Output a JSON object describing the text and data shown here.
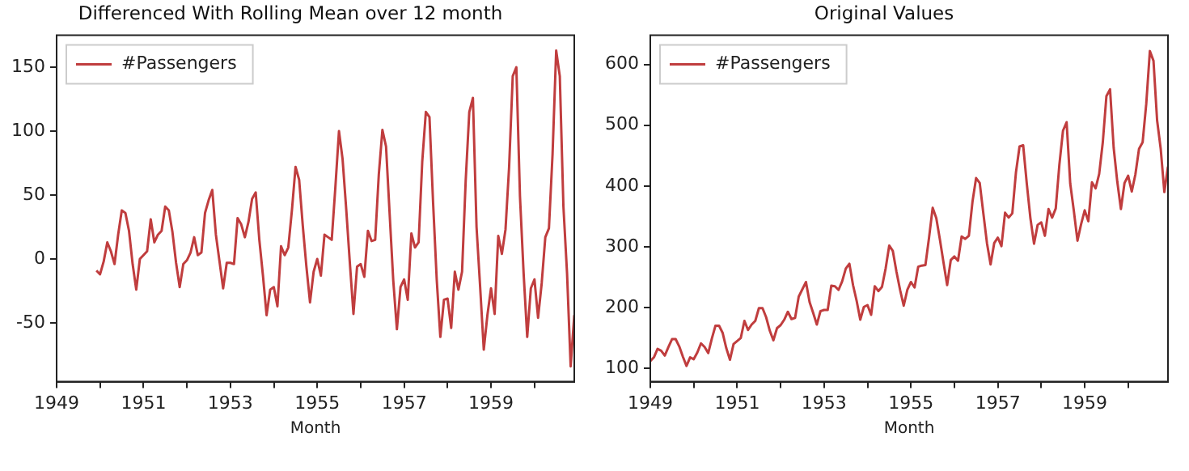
{
  "chart_data": [
    {
      "type": "line",
      "title": "Differenced With Rolling Mean over 12 month",
      "xlabel": "Month",
      "legend": "top left",
      "grid": false,
      "xlim": [
        "1949-01",
        "1960-12"
      ],
      "xticks": [
        "1949",
        {
          "value": "1950",
          "label": null
        },
        "1951",
        {
          "value": "1952",
          "label": null
        },
        "1953",
        {
          "value": "1954",
          "label": null
        },
        "1955",
        {
          "value": "1956",
          "label": null
        },
        "1957",
        {
          "value": "1958",
          "label": null
        },
        "1959",
        {
          "value": "1960",
          "label": null
        }
      ],
      "ylim": [
        -96,
        175
      ],
      "yticks": [
        -50,
        0,
        50,
        100,
        150
      ],
      "series": [
        {
          "name": "#Passengers",
          "color": "#c03d3e",
          "x": [
            "1949-12",
            "1950-01",
            "1950-02",
            "1950-03",
            "1950-04",
            "1950-05",
            "1950-06",
            "1950-07",
            "1950-08",
            "1950-09",
            "1950-10",
            "1950-11",
            "1950-12",
            "1951-01",
            "1951-02",
            "1951-03",
            "1951-04",
            "1951-05",
            "1951-06",
            "1951-07",
            "1951-08",
            "1951-09",
            "1951-10",
            "1951-11",
            "1951-12",
            "1952-01",
            "1952-02",
            "1952-03",
            "1952-04",
            "1952-05",
            "1952-06",
            "1952-07",
            "1952-08",
            "1952-09",
            "1952-10",
            "1952-11",
            "1952-12",
            "1953-01",
            "1953-02",
            "1953-03",
            "1953-04",
            "1953-05",
            "1953-06",
            "1953-07",
            "1953-08",
            "1953-09",
            "1953-10",
            "1953-11",
            "1953-12",
            "1954-01",
            "1954-02",
            "1954-03",
            "1954-04",
            "1954-05",
            "1954-06",
            "1954-07",
            "1954-08",
            "1954-09",
            "1954-10",
            "1954-11",
            "1954-12",
            "1955-01",
            "1955-02",
            "1955-03",
            "1955-04",
            "1955-05",
            "1955-06",
            "1955-07",
            "1955-08",
            "1955-09",
            "1955-10",
            "1955-11",
            "1955-12",
            "1956-01",
            "1956-02",
            "1956-03",
            "1956-04",
            "1956-05",
            "1956-06",
            "1956-07",
            "1956-08",
            "1956-09",
            "1956-10",
            "1956-11",
            "1956-12",
            "1957-01",
            "1957-02",
            "1957-03",
            "1957-04",
            "1957-05",
            "1957-06",
            "1957-07",
            "1957-08",
            "1957-09",
            "1957-10",
            "1957-11",
            "1957-12",
            "1958-01",
            "1958-02",
            "1958-03",
            "1958-04",
            "1958-05",
            "1958-06",
            "1958-07",
            "1958-08",
            "1958-09",
            "1958-10",
            "1958-11",
            "1958-12",
            "1959-01",
            "1959-02",
            "1959-03",
            "1959-04",
            "1959-05",
            "1959-06",
            "1959-07",
            "1959-08",
            "1959-09",
            "1959-10",
            "1959-11",
            "1959-12",
            "1960-01",
            "1960-02",
            "1960-03",
            "1960-04",
            "1960-05",
            "1960-06",
            "1960-07",
            "1960-08",
            "1960-09",
            "1960-10",
            "1960-11",
            "1960-12"
          ],
          "values": [
            -9,
            -12,
            -2,
            13,
            6,
            -4,
            19,
            38,
            36,
            22,
            -4,
            -24,
            0,
            3,
            6,
            31,
            13,
            19,
            22,
            41,
            38,
            21,
            -3,
            -22,
            -4,
            -1,
            5,
            17,
            3,
            5,
            36,
            46,
            54,
            19,
            -2,
            -23,
            -3,
            -3,
            -4,
            32,
            27,
            17,
            29,
            47,
            52,
            15,
            -13,
            -44,
            -24,
            -22,
            -37,
            10,
            3,
            9,
            38,
            72,
            62,
            26,
            -6,
            -34,
            -10,
            0,
            -13,
            19,
            17,
            15,
            56,
            100,
            78,
            39,
            -3,
            -43,
            -6,
            -4,
            -14,
            22,
            14,
            15,
            66,
            101,
            88,
            35,
            -17,
            -55,
            -22,
            -16,
            -32,
            20,
            9,
            13,
            76,
            115,
            111,
            44,
            -16,
            -61,
            -32,
            -31,
            -54,
            -10,
            -24,
            -10,
            61,
            115,
            126,
            25,
            -22,
            -71,
            -44,
            -23,
            -43,
            18,
            4,
            23,
            72,
            143,
            150,
            49,
            -11,
            -61,
            -23,
            -16,
            -46,
            -19,
            17,
            24,
            82,
            163,
            143,
            41,
            -11,
            -84,
            -44
          ]
        }
      ]
    },
    {
      "type": "line",
      "title": "Original Values",
      "xlabel": "Month",
      "legend": "top left",
      "grid": false,
      "xlim": [
        "1949-01",
        "1960-12"
      ],
      "xticks": [
        "1949",
        {
          "value": "1950",
          "label": null
        },
        "1951",
        {
          "value": "1952",
          "label": null
        },
        "1953",
        {
          "value": "1954",
          "label": null
        },
        "1955",
        {
          "value": "1956",
          "label": null
        },
        "1957",
        {
          "value": "1958",
          "label": null
        },
        "1959",
        {
          "value": "1960",
          "label": null
        }
      ],
      "ylim": [
        78,
        648
      ],
      "yticks": [
        100,
        200,
        300,
        400,
        500,
        600
      ],
      "series": [
        {
          "name": "#Passengers",
          "color": "#c03d3e",
          "x": [
            "1949-01",
            "1949-02",
            "1949-03",
            "1949-04",
            "1949-05",
            "1949-06",
            "1949-07",
            "1949-08",
            "1949-09",
            "1949-10",
            "1949-11",
            "1949-12",
            "1950-01",
            "1950-02",
            "1950-03",
            "1950-04",
            "1950-05",
            "1950-06",
            "1950-07",
            "1950-08",
            "1950-09",
            "1950-10",
            "1950-11",
            "1950-12",
            "1951-01",
            "1951-02",
            "1951-03",
            "1951-04",
            "1951-05",
            "1951-06",
            "1951-07",
            "1951-08",
            "1951-09",
            "1951-10",
            "1951-11",
            "1951-12",
            "1952-01",
            "1952-02",
            "1952-03",
            "1952-04",
            "1952-05",
            "1952-06",
            "1952-07",
            "1952-08",
            "1952-09",
            "1952-10",
            "1952-11",
            "1952-12",
            "1953-01",
            "1953-02",
            "1953-03",
            "1953-04",
            "1953-05",
            "1953-06",
            "1953-07",
            "1953-08",
            "1953-09",
            "1953-10",
            "1953-11",
            "1953-12",
            "1954-01",
            "1954-02",
            "1954-03",
            "1954-04",
            "1954-05",
            "1954-06",
            "1954-07",
            "1954-08",
            "1954-09",
            "1954-10",
            "1954-11",
            "1954-12",
            "1955-01",
            "1955-02",
            "1955-03",
            "1955-04",
            "1955-05",
            "1955-06",
            "1955-07",
            "1955-08",
            "1955-09",
            "1955-10",
            "1955-11",
            "1955-12",
            "1956-01",
            "1956-02",
            "1956-03",
            "1956-04",
            "1956-05",
            "1956-06",
            "1956-07",
            "1956-08",
            "1956-09",
            "1956-10",
            "1956-11",
            "1956-12",
            "1957-01",
            "1957-02",
            "1957-03",
            "1957-04",
            "1957-05",
            "1957-06",
            "1957-07",
            "1957-08",
            "1957-09",
            "1957-10",
            "1957-11",
            "1957-12",
            "1958-01",
            "1958-02",
            "1958-03",
            "1958-04",
            "1958-05",
            "1958-06",
            "1958-07",
            "1958-08",
            "1958-09",
            "1958-10",
            "1958-11",
            "1958-12",
            "1959-01",
            "1959-02",
            "1959-03",
            "1959-04",
            "1959-05",
            "1959-06",
            "1959-07",
            "1959-08",
            "1959-09",
            "1959-10",
            "1959-11",
            "1959-12",
            "1960-01",
            "1960-02",
            "1960-03",
            "1960-04",
            "1960-05",
            "1960-06",
            "1960-07",
            "1960-08",
            "1960-09",
            "1960-10",
            "1960-11",
            "1960-12"
          ],
          "values": [
            112,
            118,
            132,
            129,
            121,
            135,
            148,
            148,
            136,
            119,
            104,
            118,
            115,
            126,
            141,
            135,
            125,
            149,
            170,
            170,
            158,
            133,
            114,
            140,
            145,
            150,
            178,
            163,
            172,
            178,
            199,
            199,
            184,
            162,
            146,
            166,
            171,
            180,
            193,
            181,
            183,
            218,
            230,
            242,
            209,
            191,
            172,
            194,
            196,
            196,
            236,
            235,
            229,
            243,
            264,
            272,
            237,
            211,
            180,
            201,
            204,
            188,
            235,
            227,
            234,
            264,
            302,
            293,
            259,
            229,
            203,
            229,
            242,
            233,
            267,
            269,
            270,
            315,
            364,
            347,
            312,
            274,
            237,
            278,
            284,
            277,
            317,
            313,
            318,
            374,
            413,
            405,
            355,
            306,
            271,
            306,
            315,
            301,
            356,
            348,
            355,
            422,
            465,
            467,
            404,
            347,
            305,
            336,
            340,
            318,
            362,
            348,
            363,
            435,
            491,
            505,
            404,
            359,
            310,
            337,
            360,
            342,
            406,
            396,
            420,
            472,
            548,
            559,
            463,
            407,
            362,
            405,
            417,
            391,
            419,
            461,
            472,
            535,
            622,
            606,
            508,
            461,
            390,
            432
          ]
        }
      ]
    }
  ]
}
